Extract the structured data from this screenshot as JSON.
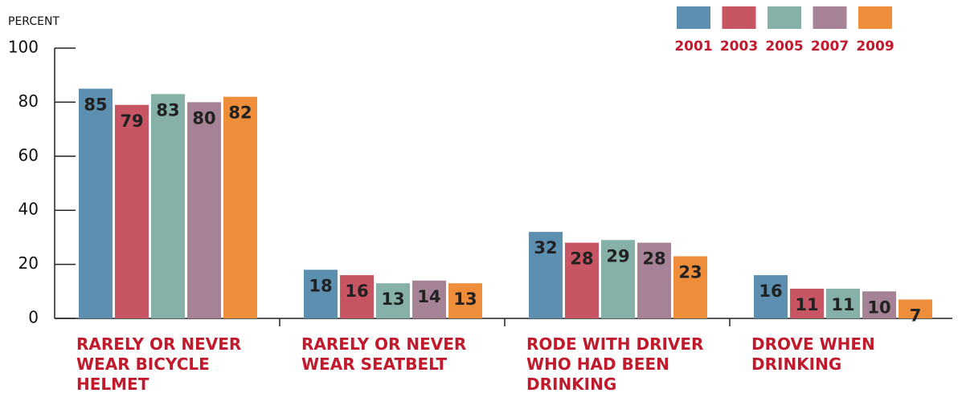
{
  "chart_data": {
    "type": "bar",
    "y_label": "PERCENT",
    "categories": [
      "RARELY OR NEVER WEAR BICYCLE HELMET",
      "RARELY OR NEVER WEAR SEATBELT",
      "RODE WITH DRIVER WHO HAD BEEN DRINKING",
      "DROVE WHEN DRINKING"
    ],
    "series": [
      {
        "name": "2001",
        "color": "#5d8fb1",
        "values": [
          85,
          18,
          32,
          16
        ]
      },
      {
        "name": "2003",
        "color": "#c85564",
        "values": [
          79,
          16,
          28,
          11
        ]
      },
      {
        "name": "2005",
        "color": "#86b1a9",
        "values": [
          83,
          13,
          29,
          11
        ]
      },
      {
        "name": "2007",
        "color": "#a68296",
        "values": [
          80,
          14,
          28,
          10
        ]
      },
      {
        "name": "2009",
        "color": "#ee8e3b",
        "values": [
          82,
          13,
          23,
          7
        ]
      }
    ],
    "ylim": [
      0,
      100
    ],
    "yticks": [
      0,
      20,
      40,
      60,
      80,
      100
    ],
    "legend": "top-right"
  }
}
